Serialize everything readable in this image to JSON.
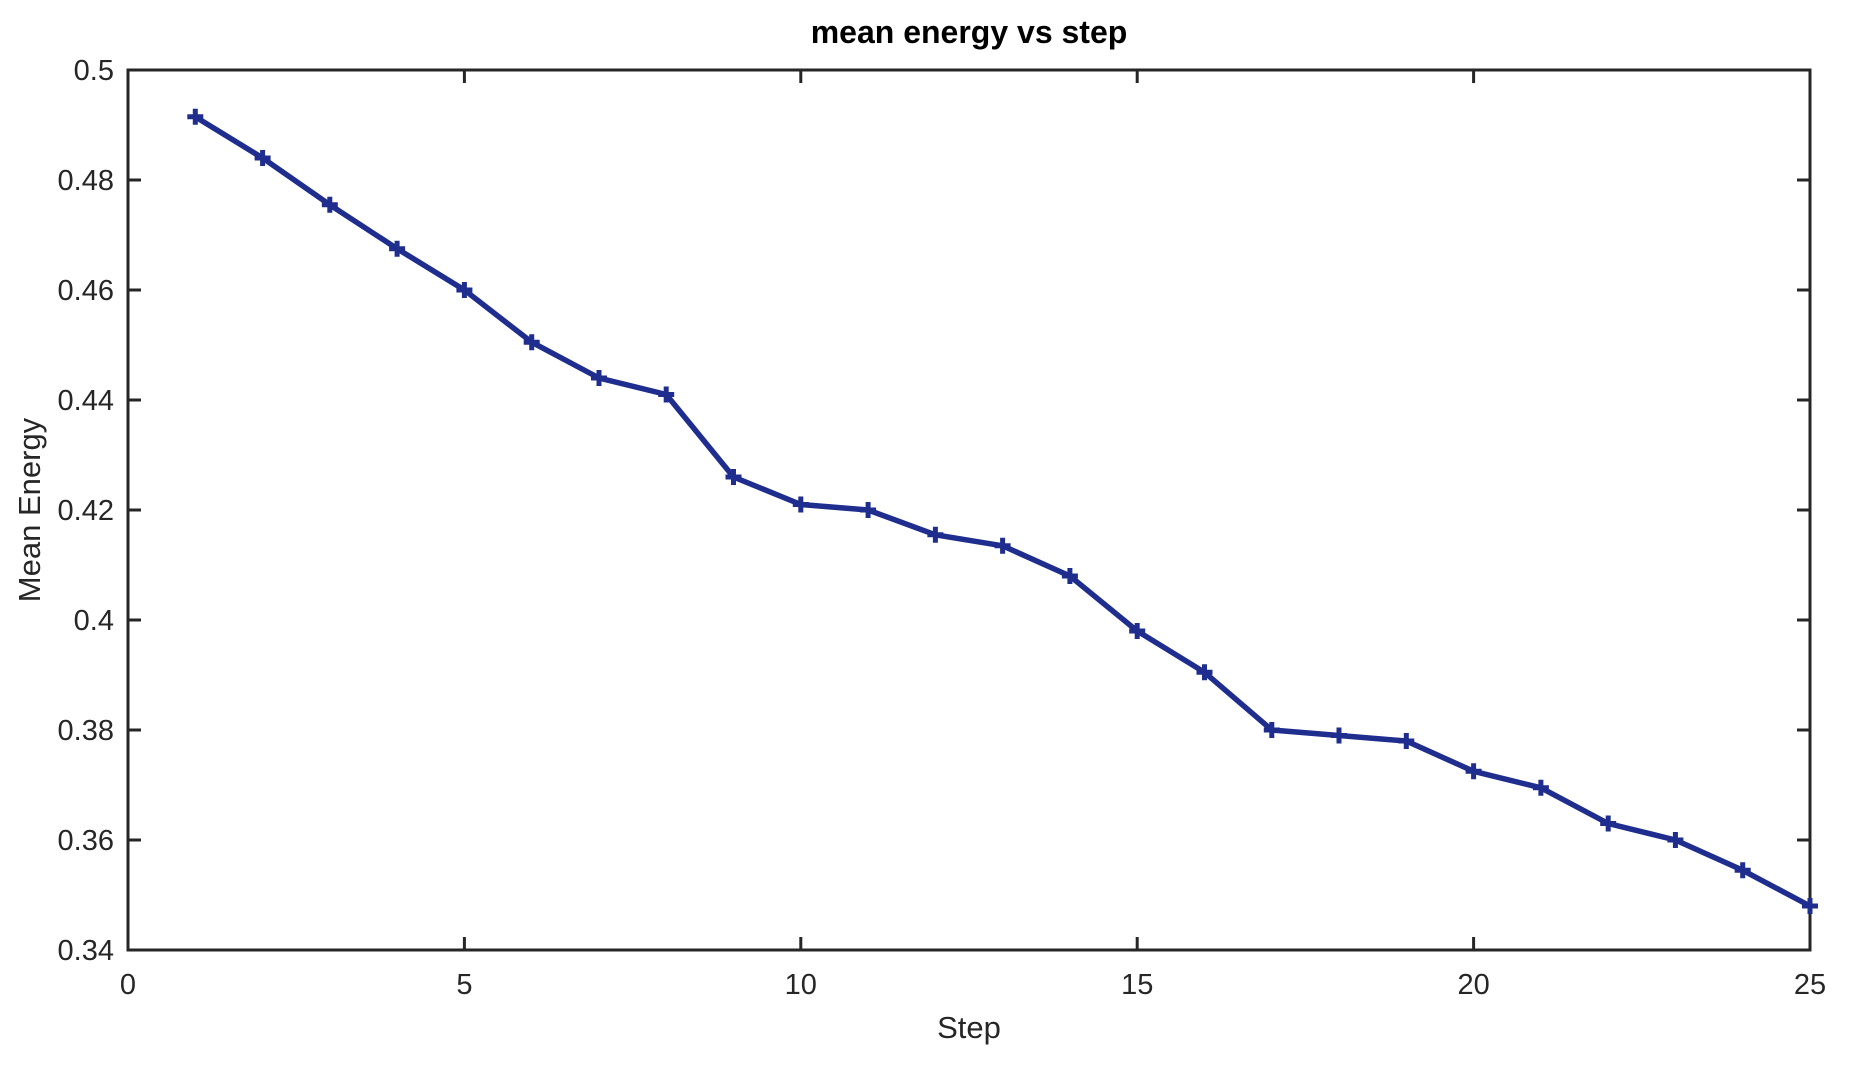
{
  "chart_data": {
    "type": "line",
    "title": "mean energy vs step",
    "xlabel": "Step",
    "ylabel": "Mean Energy",
    "series": [
      {
        "name": "mean energy",
        "x": [
          1,
          2,
          3,
          4,
          5,
          6,
          7,
          8,
          9,
          10,
          11,
          12,
          13,
          14,
          15,
          16,
          17,
          18,
          19,
          20,
          21,
          22,
          23,
          24,
          25
        ],
        "y": [
          0.4915,
          0.484,
          0.4755,
          0.4675,
          0.46,
          0.4505,
          0.444,
          0.441,
          0.426,
          0.421,
          0.42,
          0.4155,
          0.4135,
          0.408,
          0.398,
          0.3905,
          0.38,
          0.379,
          0.378,
          0.3725,
          0.3695,
          0.363,
          0.36,
          0.3545,
          0.348
        ],
        "line_color": "#1e2d8e",
        "marker": "plus",
        "marker_color": "#1e2d8e"
      }
    ],
    "xlim": [
      0,
      25
    ],
    "ylim": [
      0.34,
      0.5
    ],
    "xticks": {
      "values": [
        0,
        5,
        10,
        15,
        20,
        25
      ],
      "labels": [
        "0",
        "5",
        "10",
        "15",
        "20",
        "25"
      ]
    },
    "yticks": {
      "values": [
        0.34,
        0.36,
        0.38,
        0.4,
        0.42,
        0.44,
        0.46,
        0.48,
        0.5
      ],
      "labels": [
        "0.34",
        "0.36",
        "0.38",
        "0.4",
        "0.42",
        "0.44",
        "0.46",
        "0.48",
        "0.5"
      ]
    },
    "grid": false,
    "legend": null,
    "axis_color": "#262626",
    "background_color": "#ffffff"
  }
}
